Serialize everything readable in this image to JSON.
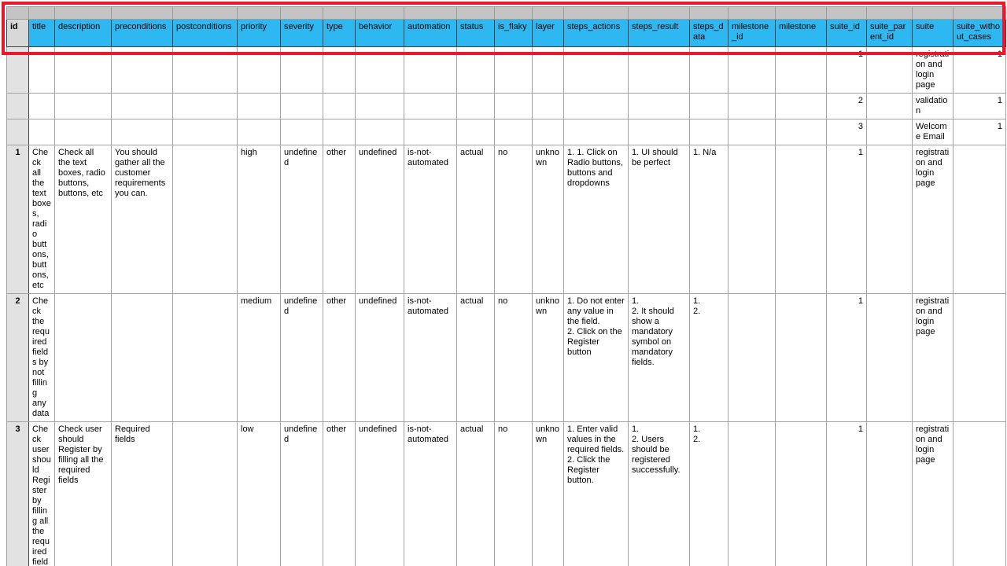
{
  "table": {
    "columns": [
      "id",
      "title",
      "description",
      "preconditions",
      "postconditions",
      "priority",
      "severity",
      "type",
      "behavior",
      "automation",
      "status",
      "is_flaky",
      "layer",
      "steps_actions",
      "steps_result",
      "steps_data",
      "milestone_id",
      "milestone",
      "suite_id",
      "suite_parent_id",
      "suite",
      "suite_without_cases"
    ],
    "rows": [
      {
        "kind": "suite",
        "cells": {
          "suite_id": "1",
          "suite": "registration and login page",
          "suite_without_cases": "1"
        }
      },
      {
        "kind": "suite",
        "cells": {
          "suite_id": "2",
          "suite": "validation",
          "suite_without_cases": "1"
        }
      },
      {
        "kind": "suite",
        "cells": {
          "suite_id": "3",
          "suite": "Welcome Email",
          "suite_without_cases": "1"
        }
      },
      {
        "kind": "case",
        "cells": {
          "id": "1",
          "title": "Check all the text boxes, radio buttons, buttons, etc",
          "description": "Check all the text boxes, radio buttons, buttons, etc",
          "preconditions": "You should gather all the customer requirements you can.",
          "postconditions": "",
          "priority": "high",
          "severity": "undefined",
          "type": "other",
          "behavior": "undefined",
          "automation": "is-not-automated",
          "status": "actual",
          "is_flaky": "no",
          "layer": "unknown",
          "steps_actions": "1. 1. Click on Radio buttons, buttons and dropdowns",
          "steps_result": "1. UI should be perfect",
          "steps_data": "1. N/a",
          "milestone_id": "",
          "milestone": "",
          "suite_id": "1",
          "suite_parent_id": "",
          "suite": "registration and login page",
          "suite_without_cases": ""
        }
      },
      {
        "kind": "case",
        "cells": {
          "id": "2",
          "title": "Check the required fields by not filling any data",
          "description": "",
          "preconditions": "",
          "postconditions": "",
          "priority": "medium",
          "severity": "undefined",
          "type": "other",
          "behavior": "undefined",
          "automation": "is-not-automated",
          "status": "actual",
          "is_flaky": "no",
          "layer": "unknown",
          "steps_actions": "1. Do not enter any value in the field.\n2. Click on the Register button",
          "steps_result": "1.\n2. It should show a mandatory symbol on mandatory fields.",
          "steps_data": "1.\n2.",
          "milestone_id": "",
          "milestone": "",
          "suite_id": "1",
          "suite_parent_id": "",
          "suite": "registration and login page",
          "suite_without_cases": ""
        }
      },
      {
        "kind": "case",
        "cells": {
          "id": "3",
          "title": "Check user should Register by filling all the required fields",
          "description": "Check user should Register by filling all the required fields",
          "preconditions": "Required fields",
          "postconditions": "",
          "priority": "low",
          "severity": "undefined",
          "type": "other",
          "behavior": "undefined",
          "automation": "is-not-automated",
          "status": "actual",
          "is_flaky": "no",
          "layer": "unknown",
          "steps_actions": "1. Enter valid values in the required fields.\n2. Click the Register button.",
          "steps_result": "1.\n2. Users should be registered successfully.",
          "steps_data": "1.\n2.",
          "milestone_id": "",
          "milestone": "",
          "suite_id": "1",
          "suite_parent_id": "",
          "suite": "registration and login page",
          "suite_without_cases": ""
        }
      }
    ]
  },
  "colors": {
    "header_bg": "#2eb8f2",
    "header_id_bg": "#d8d8d8",
    "strip_bg": "#c4c4c4",
    "id_column_bg": "#e2e2e2",
    "highlight_border": "#e9182c",
    "gridline": "#a3a3a3"
  }
}
